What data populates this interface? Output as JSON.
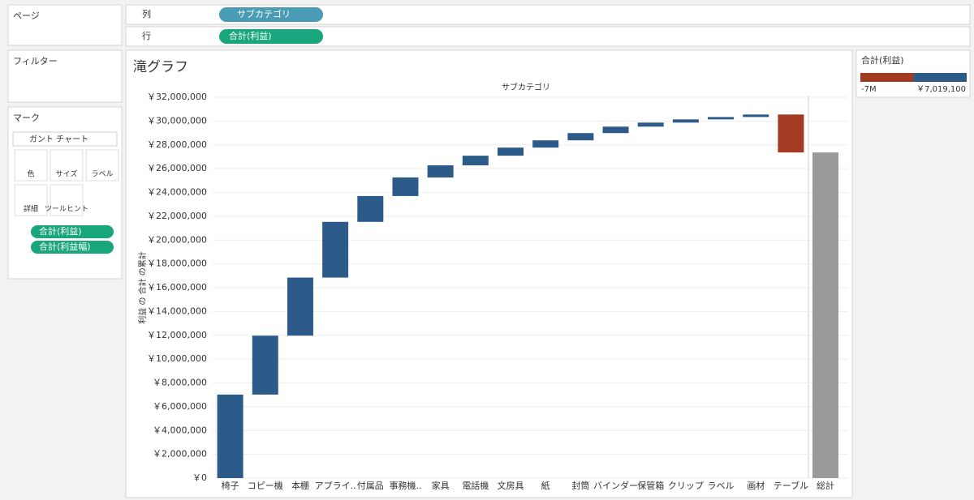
{
  "ui": {
    "page_label": "ページ",
    "filter_label": "フィルター",
    "marks_label": "マーク",
    "mark_type": "ガント チャート",
    "mark_buttons": [
      "色",
      "サイズ",
      "ラベル",
      "詳細",
      "ツールヒント"
    ],
    "mark_pills": [
      "合計(利益)",
      "合計(利益幅)"
    ],
    "columns_label": "列",
    "columns_pill": "サブカテゴリ",
    "rows_label": "行",
    "rows_pill": "合計(利益)"
  },
  "legend": {
    "title": "合計(利益)",
    "min_label": "-7M",
    "max_label": "￥7,019,100"
  },
  "chart_data": {
    "type": "waterfall",
    "title": "滝グラフ",
    "x_header": "サブカテゴリ",
    "y_label": "利益 の 合計 の累計",
    "categories": [
      "椅子",
      "コピー機",
      "本棚",
      "アプライ..",
      "付属品",
      "事務機..",
      "家具",
      "電話機",
      "文房具",
      "紙",
      "封筒",
      "バインダー",
      "保管箱",
      "クリップ",
      "ラベル",
      "画材",
      "テーブル"
    ],
    "values": [
      7019100,
      4950000,
      4880000,
      4680000,
      2170000,
      1560000,
      1020000,
      810000,
      680000,
      610000,
      610000,
      540000,
      340000,
      270000,
      200000,
      210000,
      -3190000
    ],
    "total_label": "総計",
    "total_value": 27359100,
    "color_positive": "#2c5b8a",
    "color_negative": "#a33a22",
    "total_color": "#9a9a9a",
    "ylim": [
      0,
      32000000
    ],
    "yticks": [
      {
        "value": 0,
        "label": "￥0"
      },
      {
        "value": 2000000,
        "label": "￥2,000,000"
      },
      {
        "value": 4000000,
        "label": "￥4,000,000"
      },
      {
        "value": 6000000,
        "label": "￥6,000,000"
      },
      {
        "value": 8000000,
        "label": "￥8,000,000"
      },
      {
        "value": 10000000,
        "label": "￥10,000,000"
      },
      {
        "value": 12000000,
        "label": "￥12,000,000"
      },
      {
        "value": 14000000,
        "label": "￥14,000,000"
      },
      {
        "value": 16000000,
        "label": "￥16,000,000"
      },
      {
        "value": 18000000,
        "label": "￥18,000,000"
      },
      {
        "value": 20000000,
        "label": "￥20,000,000"
      },
      {
        "value": 22000000,
        "label": "￥22,000,000"
      },
      {
        "value": 24000000,
        "label": "￥24,000,000"
      },
      {
        "value": 26000000,
        "label": "￥26,000,000"
      },
      {
        "value": 28000000,
        "label": "￥28,000,000"
      },
      {
        "value": 30000000,
        "label": "￥30,000,000"
      },
      {
        "value": 32000000,
        "label": "￥32,000,000"
      }
    ],
    "grid": true
  }
}
